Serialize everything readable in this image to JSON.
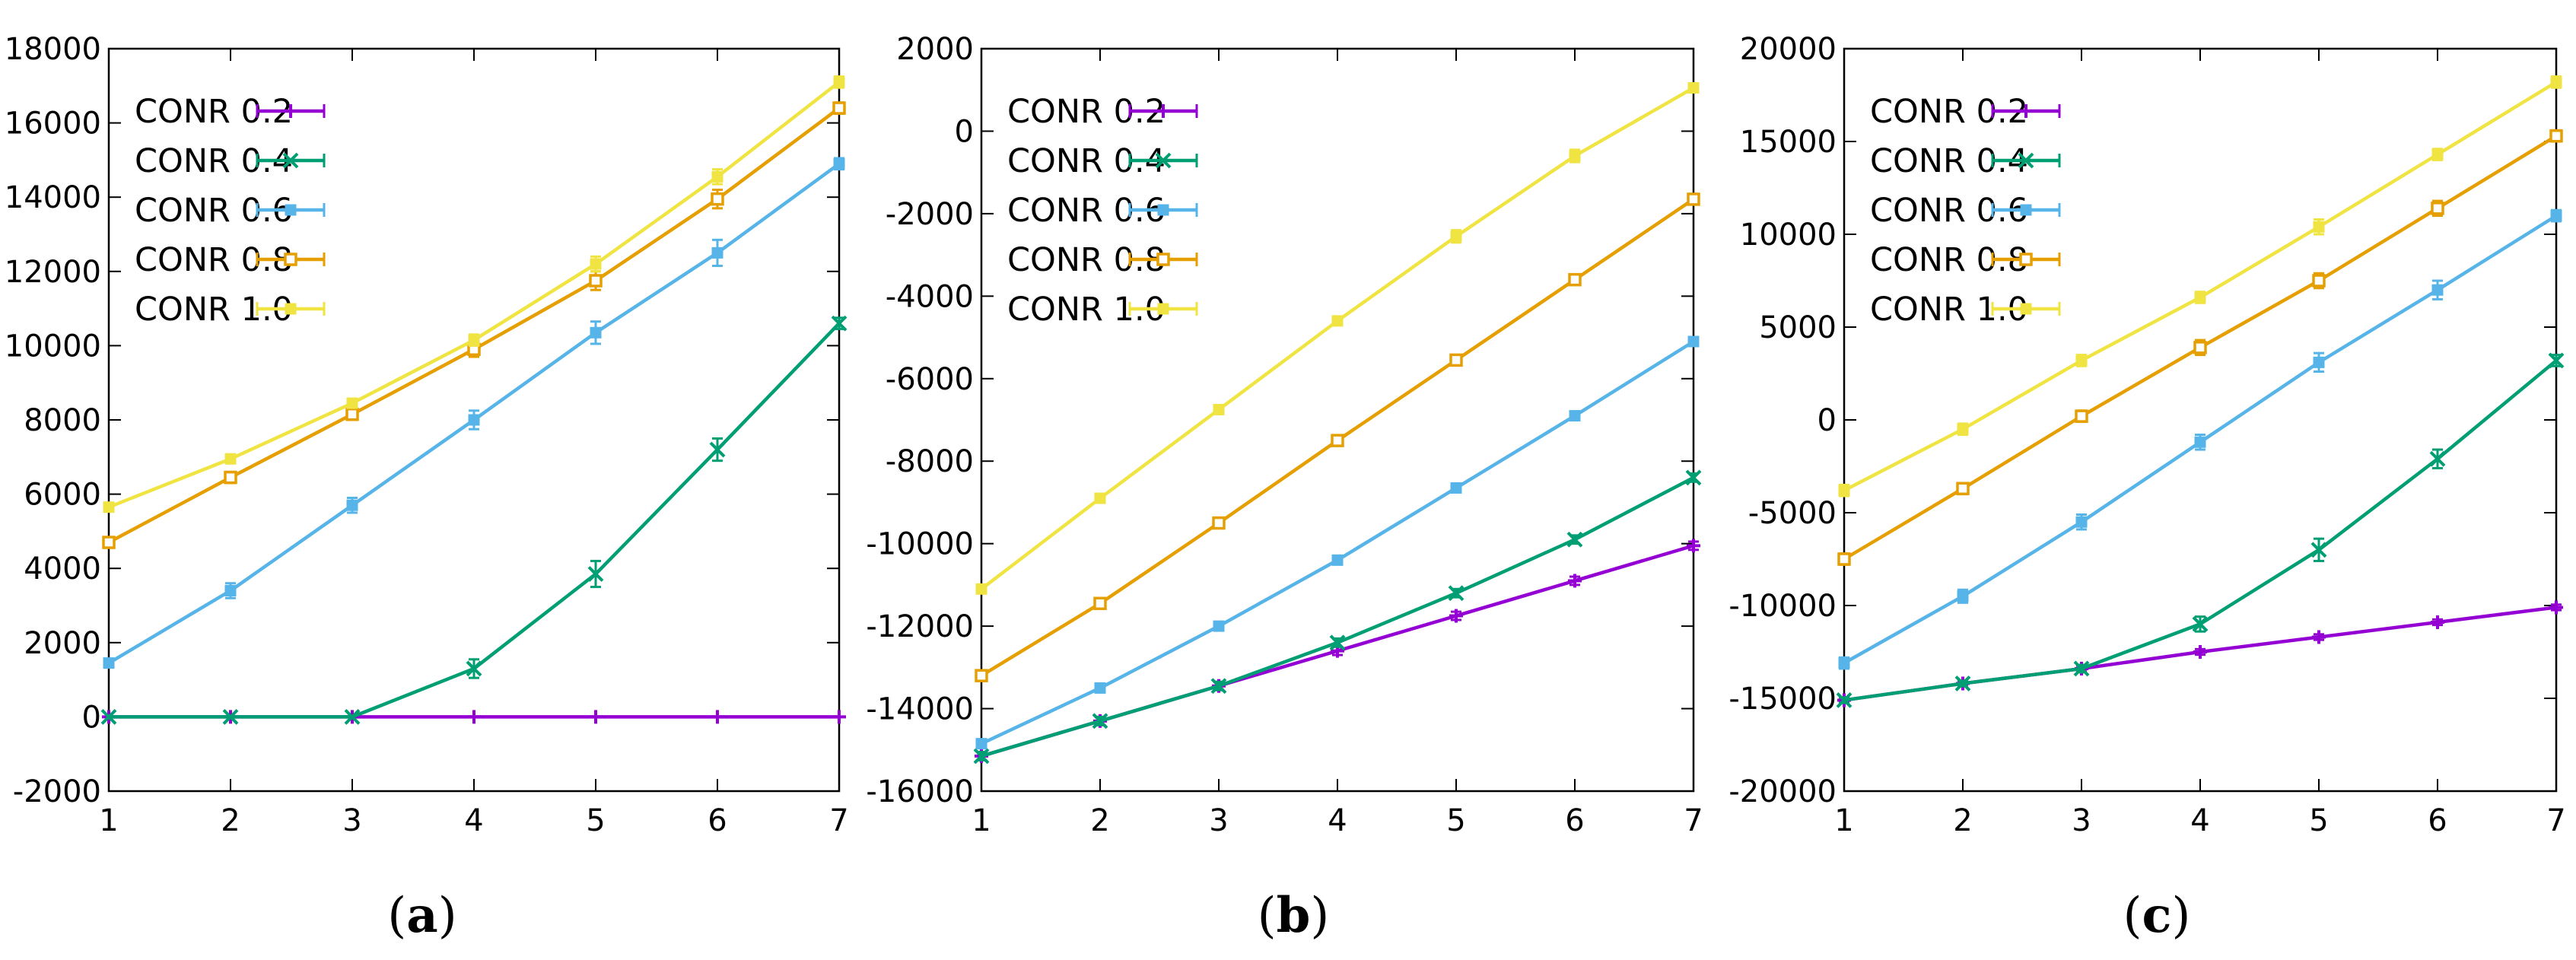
{
  "figure": {
    "panel_captions": [
      {
        "open": "(",
        "letter": "a",
        "close": ")"
      },
      {
        "open": "(",
        "letter": "b",
        "close": ")"
      },
      {
        "open": "(",
        "letter": "c",
        "close": ")"
      }
    ]
  },
  "series_colors": {
    "CONR 0.2": "#9400d3",
    "CONR 0.4": "#009e73",
    "CONR 0.6": "#56b4e9",
    "CONR 0.8": "#e69f00",
    "CONR 1.0": "#f0e442"
  },
  "series_markers": {
    "CONR 0.2": "plus",
    "CONR 0.4": "cross",
    "CONR 0.6": "filled-square",
    "CONR 0.8": "open-square",
    "CONR 1.0": "filled-square"
  },
  "chart_data": [
    {
      "type": "line",
      "panel": "a",
      "title": "",
      "xlabel": "",
      "ylabel": "",
      "x": [
        1,
        2,
        3,
        4,
        5,
        6,
        7
      ],
      "xlim": [
        1,
        7
      ],
      "ylim": [
        -2000,
        18000
      ],
      "yticks": [
        -2000,
        0,
        2000,
        4000,
        6000,
        8000,
        10000,
        12000,
        14000,
        16000,
        18000
      ],
      "ytick_labels": [
        "-2000",
        "0",
        "2000",
        "4000",
        "6000",
        "8000",
        "10000",
        "12000",
        "14000",
        "16000",
        "18000"
      ],
      "xtick_labels": [
        "1",
        "2",
        "3",
        "4",
        "5",
        "6",
        "7"
      ],
      "grid": false,
      "legend": "top-left",
      "series": [
        {
          "name": "CONR 0.2",
          "values": [
            0,
            0,
            0,
            0,
            0,
            0,
            0
          ],
          "errors": [
            0,
            0,
            0,
            0,
            0,
            0,
            0
          ]
        },
        {
          "name": "CONR 0.4",
          "values": [
            0,
            0,
            0,
            1300,
            3850,
            7200,
            10600
          ],
          "errors": [
            0,
            0,
            0,
            250,
            350,
            300,
            150
          ]
        },
        {
          "name": "CONR 0.6",
          "values": [
            1450,
            3400,
            5700,
            8000,
            10350,
            12500,
            14900
          ],
          "errors": [
            120,
            200,
            200,
            250,
            300,
            350,
            150
          ]
        },
        {
          "name": "CONR 0.8",
          "values": [
            4700,
            6450,
            8150,
            9900,
            11750,
            13950,
            16400
          ],
          "errors": [
            100,
            150,
            150,
            200,
            250,
            250,
            150
          ]
        },
        {
          "name": "CONR 1.0",
          "values": [
            5650,
            6950,
            8450,
            10150,
            12200,
            14550,
            17100
          ],
          "errors": [
            100,
            120,
            120,
            150,
            200,
            200,
            150
          ]
        }
      ]
    },
    {
      "type": "line",
      "panel": "b",
      "title": "",
      "xlabel": "",
      "ylabel": "",
      "x": [
        1,
        2,
        3,
        4,
        5,
        6,
        7
      ],
      "xlim": [
        1,
        7
      ],
      "ylim": [
        -16000,
        2000
      ],
      "yticks": [
        -16000,
        -14000,
        -12000,
        -10000,
        -8000,
        -6000,
        -4000,
        -2000,
        0,
        2000
      ],
      "ytick_labels": [
        "-16000",
        "-14000",
        "-12000",
        "-10000",
        "-8000",
        "-6000",
        "-4000",
        "-2000",
        "0",
        "2000"
      ],
      "xtick_labels": [
        "1",
        "2",
        "3",
        "4",
        "5",
        "6",
        "7"
      ],
      "grid": false,
      "legend": "top-left",
      "series": [
        {
          "name": "CONR 0.2",
          "values": [
            -15150,
            -14300,
            -13450,
            -12600,
            -11750,
            -10900,
            -10050
          ],
          "errors": [
            100,
            100,
            100,
            100,
            100,
            100,
            100
          ]
        },
        {
          "name": "CONR 0.4",
          "values": [
            -15150,
            -14300,
            -13450,
            -12400,
            -11200,
            -9900,
            -8400
          ],
          "errors": [
            100,
            100,
            100,
            100,
            100,
            100,
            100
          ]
        },
        {
          "name": "CONR 0.6",
          "values": [
            -14850,
            -13500,
            -12000,
            -10400,
            -8650,
            -6900,
            -5100
          ],
          "errors": [
            100,
            100,
            100,
            100,
            100,
            100,
            100
          ]
        },
        {
          "name": "CONR 0.8",
          "values": [
            -13200,
            -11450,
            -9500,
            -7500,
            -5550,
            -3600,
            -1650
          ],
          "errors": [
            100,
            100,
            100,
            100,
            100,
            100,
            100
          ]
        },
        {
          "name": "CONR 1.0",
          "values": [
            -11100,
            -8900,
            -6750,
            -4600,
            -2550,
            -600,
            1050
          ],
          "errors": [
            100,
            100,
            100,
            100,
            150,
            150,
            100
          ]
        }
      ]
    },
    {
      "type": "line",
      "panel": "c",
      "title": "",
      "xlabel": "",
      "ylabel": "",
      "x": [
        1,
        2,
        3,
        4,
        5,
        6,
        7
      ],
      "xlim": [
        1,
        7
      ],
      "ylim": [
        -20000,
        20000
      ],
      "yticks": [
        -20000,
        -15000,
        -10000,
        -5000,
        0,
        5000,
        10000,
        15000,
        20000
      ],
      "ytick_labels": [
        "-20000",
        "-15000",
        "-10000",
        "-5000",
        "0",
        "5000",
        "10000",
        "15000",
        "20000"
      ],
      "xtick_labels": [
        "1",
        "2",
        "3",
        "4",
        "5",
        "6",
        "7"
      ],
      "grid": false,
      "legend": "top-left",
      "series": [
        {
          "name": "CONR 0.2",
          "values": [
            -15100,
            -14200,
            -13400,
            -12500,
            -11700,
            -10900,
            -10100
          ],
          "errors": [
            150,
            150,
            150,
            150,
            150,
            150,
            150
          ]
        },
        {
          "name": "CONR 0.4",
          "values": [
            -15100,
            -14200,
            -13400,
            -11000,
            -7000,
            -2100,
            3200
          ],
          "errors": [
            150,
            150,
            200,
            400,
            600,
            500,
            300
          ]
        },
        {
          "name": "CONR 0.6",
          "values": [
            -13100,
            -9500,
            -5500,
            -1200,
            3100,
            7000,
            11000
          ],
          "errors": [
            300,
            350,
            400,
            400,
            500,
            500,
            300
          ]
        },
        {
          "name": "CONR 0.8",
          "values": [
            -7500,
            -3700,
            200,
            3900,
            7500,
            11400,
            15300
          ],
          "errors": [
            300,
            300,
            300,
            400,
            400,
            400,
            300
          ]
        },
        {
          "name": "CONR 1.0",
          "values": [
            -3800,
            -500,
            3200,
            6600,
            10400,
            14300,
            18200
          ],
          "errors": [
            300,
            300,
            300,
            300,
            400,
            300,
            300
          ]
        }
      ]
    }
  ]
}
